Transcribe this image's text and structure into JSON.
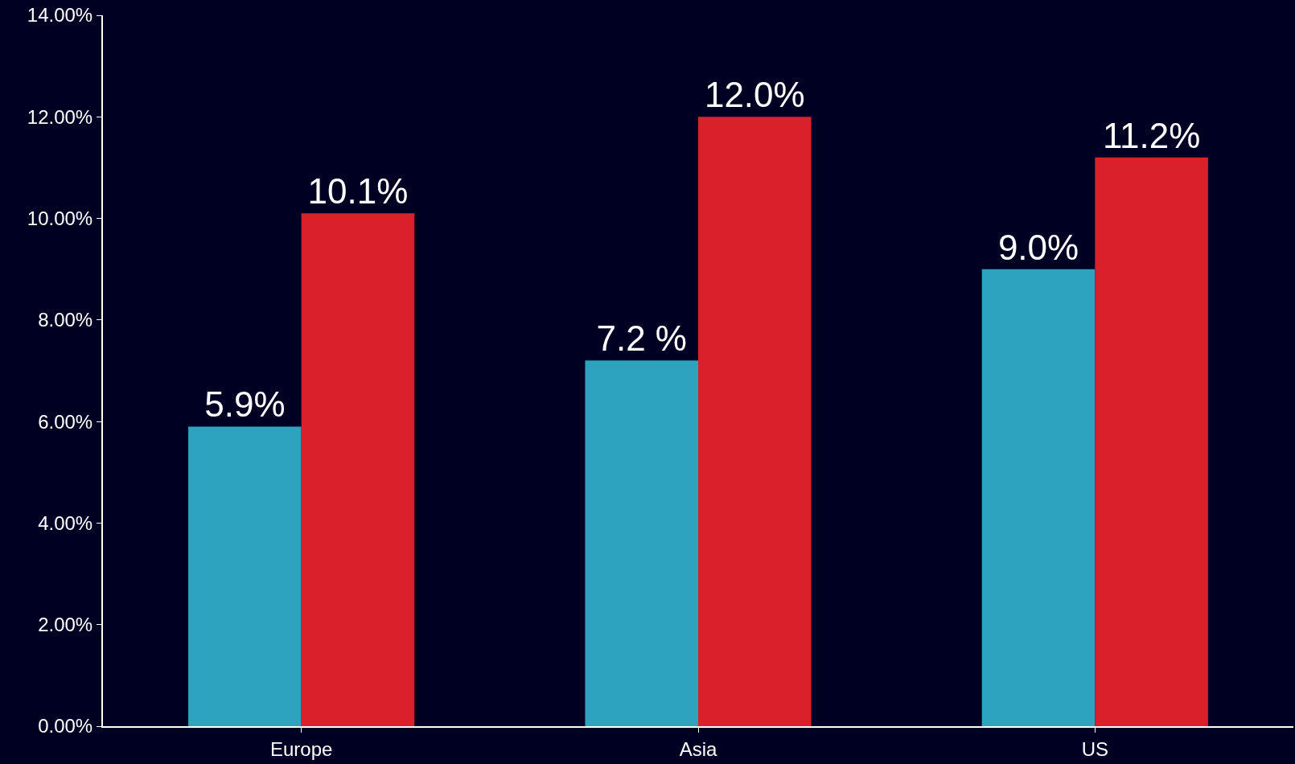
{
  "chart_data": {
    "type": "bar",
    "categories": [
      "Europe",
      "Asia",
      "US"
    ],
    "series": [
      {
        "color": "#2ea3bf",
        "values": [
          5.9,
          7.2,
          9.0
        ],
        "value_labels": [
          "5.9%",
          "7.2 %",
          "9.0%"
        ]
      },
      {
        "color": "#da202a",
        "values": [
          10.1,
          12.0,
          11.2
        ],
        "value_labels": [
          "10.1%",
          "12.0%",
          "11.2%"
        ]
      }
    ],
    "ylim": [
      0,
      14
    ],
    "yticks": [
      {
        "value": 0,
        "label": "0.00%"
      },
      {
        "value": 2,
        "label": "2.00%"
      },
      {
        "value": 4,
        "label": "4.00%"
      },
      {
        "value": 6,
        "label": "6.00%"
      },
      {
        "value": 8,
        "label": "8.00%"
      },
      {
        "value": 10,
        "label": "10.00%"
      },
      {
        "value": 12,
        "label": "12.00%"
      },
      {
        "value": 14,
        "label": "14.00%"
      }
    ],
    "grid": false,
    "legend": false
  }
}
